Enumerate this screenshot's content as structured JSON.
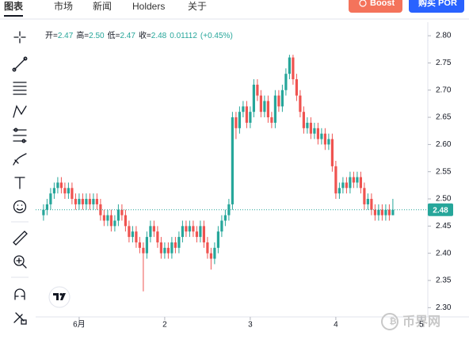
{
  "nav": {
    "tabs": [
      "图表",
      "市场",
      "新闻",
      "Holders",
      "关于"
    ],
    "buttons": [
      "Boost",
      "购买 POR"
    ]
  },
  "watermark": "币界网",
  "chart_data": {
    "type": "candlestick",
    "legend": [
      {
        "label": "开=",
        "value": "2.47"
      },
      {
        "label": "高=",
        "value": "2.50"
      },
      {
        "label": "低=",
        "value": "2.47"
      },
      {
        "label": "收=",
        "value": "2.48"
      }
    ],
    "change": "0.01112",
    "change_pct": "(+0.45%)",
    "up_color": "#26a69a",
    "down_color": "#ef5350",
    "x": [
      -10,
      -9,
      -8,
      -7,
      -6,
      -5,
      -4,
      -3,
      -2,
      -1,
      0,
      1,
      2,
      3,
      4,
      5,
      6,
      7,
      8,
      9,
      10,
      11,
      12,
      13,
      14,
      15,
      16,
      17,
      18,
      19,
      20,
      21,
      22,
      23,
      24,
      25,
      26,
      27,
      28,
      29,
      30,
      31,
      32,
      33,
      34,
      35,
      36,
      37,
      38,
      39,
      40,
      41,
      42,
      43,
      44,
      45,
      46,
      47,
      48,
      49,
      50,
      51,
      52,
      53,
      54,
      55,
      56,
      57,
      58,
      59,
      60,
      61,
      62,
      63,
      64,
      65,
      66,
      67,
      68,
      69,
      70,
      71,
      72,
      73,
      74,
      75,
      76,
      77,
      78,
      79,
      80,
      81,
      82,
      83,
      84,
      85,
      86,
      87,
      88
    ],
    "open": [
      2.47,
      2.48,
      2.49,
      2.51,
      2.52,
      2.53,
      2.52,
      2.51,
      2.52,
      2.5,
      2.49,
      2.5,
      2.49,
      2.5,
      2.49,
      2.5,
      2.49,
      2.47,
      2.46,
      2.47,
      2.45,
      2.46,
      2.48,
      2.47,
      2.45,
      2.43,
      2.44,
      2.42,
      2.41,
      2.4,
      2.43,
      2.45,
      2.44,
      2.42,
      2.4,
      2.41,
      2.4,
      2.42,
      2.41,
      2.43,
      2.45,
      2.44,
      2.45,
      2.44,
      2.43,
      2.45,
      2.42,
      2.4,
      2.39,
      2.41,
      2.44,
      2.46,
      2.47,
      2.49,
      2.65,
      2.63,
      2.66,
      2.67,
      2.64,
      2.66,
      2.71,
      2.69,
      2.66,
      2.68,
      2.65,
      2.64,
      2.69,
      2.67,
      2.7,
      2.73,
      2.76,
      2.72,
      2.69,
      2.66,
      2.63,
      2.64,
      2.62,
      2.63,
      2.61,
      2.62,
      2.6,
      2.61,
      2.56,
      2.51,
      2.52,
      2.53,
      2.52,
      2.54,
      2.53,
      2.54,
      2.52,
      2.49,
      2.5,
      2.48,
      2.47,
      2.48,
      2.47,
      2.48,
      2.47
    ],
    "high": [
      2.49,
      2.5,
      2.52,
      2.53,
      2.54,
      2.54,
      2.53,
      2.53,
      2.53,
      2.51,
      2.51,
      2.51,
      2.51,
      2.51,
      2.51,
      2.51,
      2.5,
      2.48,
      2.48,
      2.48,
      2.47,
      2.49,
      2.49,
      2.48,
      2.46,
      2.45,
      2.45,
      2.43,
      2.42,
      2.44,
      2.46,
      2.46,
      2.45,
      2.43,
      2.42,
      2.42,
      2.43,
      2.43,
      2.44,
      2.46,
      2.46,
      2.46,
      2.46,
      2.45,
      2.46,
      2.46,
      2.43,
      2.41,
      2.42,
      2.45,
      2.47,
      2.48,
      2.5,
      2.66,
      2.66,
      2.67,
      2.68,
      2.68,
      2.67,
      2.72,
      2.72,
      2.7,
      2.69,
      2.69,
      2.66,
      2.7,
      2.7,
      2.71,
      2.74,
      2.765,
      2.765,
      2.73,
      2.7,
      2.67,
      2.65,
      2.65,
      2.64,
      2.64,
      2.63,
      2.63,
      2.62,
      2.62,
      2.57,
      2.53,
      2.54,
      2.54,
      2.55,
      2.55,
      2.55,
      2.55,
      2.53,
      2.51,
      2.51,
      2.49,
      2.49,
      2.49,
      2.49,
      2.49,
      2.5
    ],
    "low": [
      2.46,
      2.47,
      2.48,
      2.5,
      2.51,
      2.51,
      2.5,
      2.5,
      2.49,
      2.48,
      2.48,
      2.48,
      2.48,
      2.48,
      2.48,
      2.48,
      2.46,
      2.45,
      2.45,
      2.44,
      2.44,
      2.45,
      2.46,
      2.44,
      2.42,
      2.42,
      2.41,
      2.4,
      2.33,
      2.39,
      2.42,
      2.43,
      2.41,
      2.39,
      2.39,
      2.39,
      2.39,
      2.4,
      2.4,
      2.42,
      2.43,
      2.43,
      2.43,
      2.42,
      2.42,
      2.41,
      2.39,
      2.37,
      2.38,
      2.4,
      2.43,
      2.45,
      2.46,
      2.48,
      2.61,
      2.62,
      2.65,
      2.63,
      2.63,
      2.65,
      2.68,
      2.65,
      2.65,
      2.64,
      2.63,
      2.63,
      2.66,
      2.66,
      2.69,
      2.72,
      2.71,
      2.68,
      2.65,
      2.62,
      2.62,
      2.61,
      2.61,
      2.6,
      2.6,
      2.59,
      2.59,
      2.55,
      2.5,
      2.5,
      2.51,
      2.51,
      2.51,
      2.52,
      2.52,
      2.51,
      2.48,
      2.48,
      2.47,
      2.46,
      2.46,
      2.46,
      2.46,
      2.46,
      2.47
    ],
    "close": [
      2.48,
      2.49,
      2.51,
      2.52,
      2.53,
      2.52,
      2.51,
      2.52,
      2.5,
      2.49,
      2.5,
      2.49,
      2.5,
      2.49,
      2.5,
      2.49,
      2.47,
      2.46,
      2.47,
      2.45,
      2.46,
      2.48,
      2.47,
      2.45,
      2.43,
      2.44,
      2.42,
      2.41,
      2.4,
      2.43,
      2.45,
      2.44,
      2.42,
      2.4,
      2.41,
      2.4,
      2.42,
      2.41,
      2.43,
      2.45,
      2.44,
      2.45,
      2.44,
      2.43,
      2.45,
      2.42,
      2.4,
      2.39,
      2.41,
      2.44,
      2.46,
      2.47,
      2.49,
      2.65,
      2.63,
      2.66,
      2.67,
      2.64,
      2.66,
      2.71,
      2.69,
      2.66,
      2.68,
      2.65,
      2.64,
      2.69,
      2.67,
      2.7,
      2.73,
      2.76,
      2.72,
      2.69,
      2.66,
      2.63,
      2.64,
      2.62,
      2.63,
      2.61,
      2.62,
      2.6,
      2.61,
      2.56,
      2.51,
      2.52,
      2.53,
      2.52,
      2.54,
      2.53,
      2.54,
      2.52,
      2.49,
      2.5,
      2.48,
      2.47,
      2.48,
      2.47,
      2.48,
      2.47,
      2.48
    ],
    "xlim": [
      -12.2,
      97.8
    ],
    "xticks": [
      {
        "value": 0,
        "label": "6月"
      },
      {
        "value": 24,
        "label": "2"
      },
      {
        "value": 48,
        "label": "3"
      },
      {
        "value": 72,
        "label": "4"
      },
      {
        "value": 96,
        "label": "5"
      }
    ],
    "ylim": [
      2.283,
      2.822
    ],
    "yticks": [
      {
        "value": 2.3,
        "label": "2.30"
      },
      2.35,
      {
        "value": 2.4,
        "label": "2.40"
      },
      2.45,
      {
        "value": 2.5,
        "label": "2.50"
      },
      2.55,
      {
        "value": 2.6,
        "label": "2.60"
      },
      2.65,
      {
        "value": 2.7,
        "label": "2.70"
      },
      2.75,
      {
        "value": 2.8,
        "label": "2.80"
      }
    ],
    "last_price": 2.48
  }
}
